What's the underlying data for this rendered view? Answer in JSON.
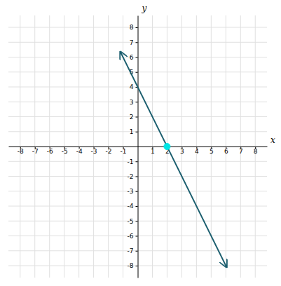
{
  "chart_data": {
    "type": "line",
    "x_label": "x",
    "y_label": "y",
    "xlim": [
      -8.8,
      8.8
    ],
    "ylim": [
      -8.8,
      8.8
    ],
    "xticks": [
      -8,
      -7,
      -6,
      -5,
      -4,
      -3,
      -2,
      -1,
      1,
      2,
      3,
      4,
      5,
      6,
      7,
      8
    ],
    "yticks": [
      -8,
      -7,
      -6,
      -5,
      -4,
      -3,
      -2,
      -1,
      1,
      2,
      3,
      4,
      5,
      6,
      7,
      8
    ],
    "grid": true,
    "series": [
      {
        "type": "line",
        "marker": "arrow",
        "color": "#1b5e6e",
        "x": [
          -1.18,
          6.05
        ],
        "values": [
          6.36,
          -8.1
        ]
      },
      {
        "type": "scatter",
        "marker": "circle",
        "color": "#00e5e5",
        "x": [
          2
        ],
        "values": [
          0
        ]
      }
    ]
  }
}
